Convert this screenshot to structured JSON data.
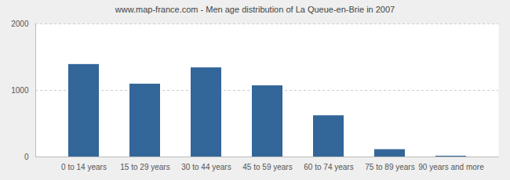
{
  "chart_data": {
    "type": "bar",
    "title": "www.map-france.com - Men age distribution of La Queue-en-Brie in 2007",
    "categories": [
      "0 to 14 years",
      "15 to 29 years",
      "30 to 44 years",
      "45 to 59 years",
      "60 to 74 years",
      "75 to 89 years",
      "90 years and more"
    ],
    "values": [
      1390,
      1095,
      1340,
      1070,
      620,
      110,
      12
    ],
    "color": "#336699",
    "ylim": [
      0,
      2000
    ],
    "yticks": [
      0,
      1000,
      2000
    ],
    "grid": true
  }
}
